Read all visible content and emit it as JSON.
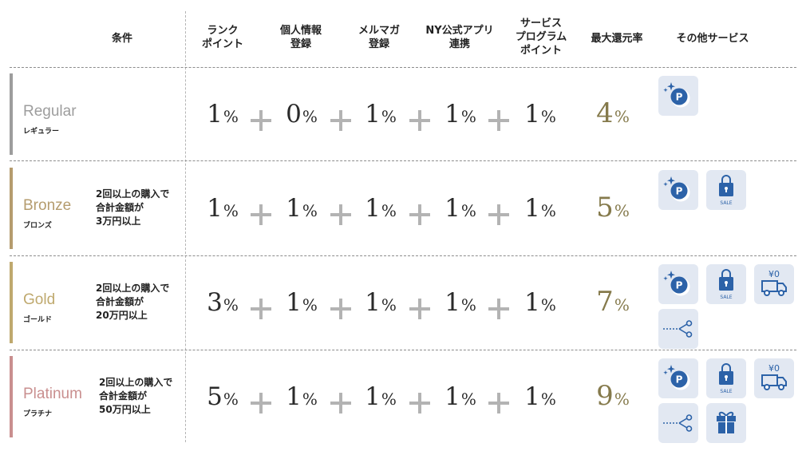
{
  "headers": {
    "conditions": "条件",
    "rank_point": [
      "ランク",
      "ポイント"
    ],
    "personal_info": [
      "個人情報",
      "登録"
    ],
    "mail_magazine": [
      "メルマガ",
      "登録"
    ],
    "ny_app": [
      "NY公式アプリ",
      "連携"
    ],
    "service_program": [
      "サービス",
      "プログラム",
      "ポイント"
    ],
    "max_rate": "最大還元率",
    "other_services": "その他サービス"
  },
  "percent_symbol": "%",
  "colors": {
    "regular": "#9d9d9d",
    "bronze": "#b59c6e",
    "gold": "#bfa96e",
    "platinum": "#c98f8f",
    "max_rate": "#857a4c",
    "plus": "#b3b3b3",
    "icon_bg": "#e2e8f2",
    "icon_fg": "#2c62a8"
  },
  "tiers": [
    {
      "name": "Regular",
      "subname": "レギュラー",
      "condition": [],
      "rank": "1",
      "personal": "0",
      "mail": "1",
      "app": "1",
      "service": "1",
      "max": "4",
      "services": [
        "point-icon"
      ]
    },
    {
      "name": "Bronze",
      "subname": "ブロンズ",
      "condition": [
        "2回以上の購入で",
        "合計金額が",
        "3万円以上"
      ],
      "rank": "1",
      "personal": "1",
      "mail": "1",
      "app": "1",
      "service": "1",
      "max": "5",
      "services": [
        "point-icon",
        "sale-bag-icon"
      ]
    },
    {
      "name": "Gold",
      "subname": "ゴールド",
      "condition": [
        "2回以上の購入で",
        "合計金額が",
        "20万円以上"
      ],
      "rank": "3",
      "personal": "1",
      "mail": "1",
      "app": "1",
      "service": "1",
      "max": "7",
      "services": [
        "point-icon",
        "sale-bag-icon",
        "free-shipping-truck-icon",
        "coupon-scissors-icon"
      ]
    },
    {
      "name": "Platinum",
      "subname": "プラチナ",
      "condition": [
        "2回以上の購入で",
        "合計金額が",
        "50万円以上"
      ],
      "rank": "5",
      "personal": "1",
      "mail": "1",
      "app": "1",
      "service": "1",
      "max": "9",
      "services": [
        "point-icon",
        "sale-bag-icon",
        "free-shipping-truck-icon",
        "coupon-scissors-icon",
        "gift-box-icon"
      ]
    }
  ],
  "icon_text": {
    "point": "P",
    "sale": "SALE",
    "yen_zero": "¥0"
  }
}
